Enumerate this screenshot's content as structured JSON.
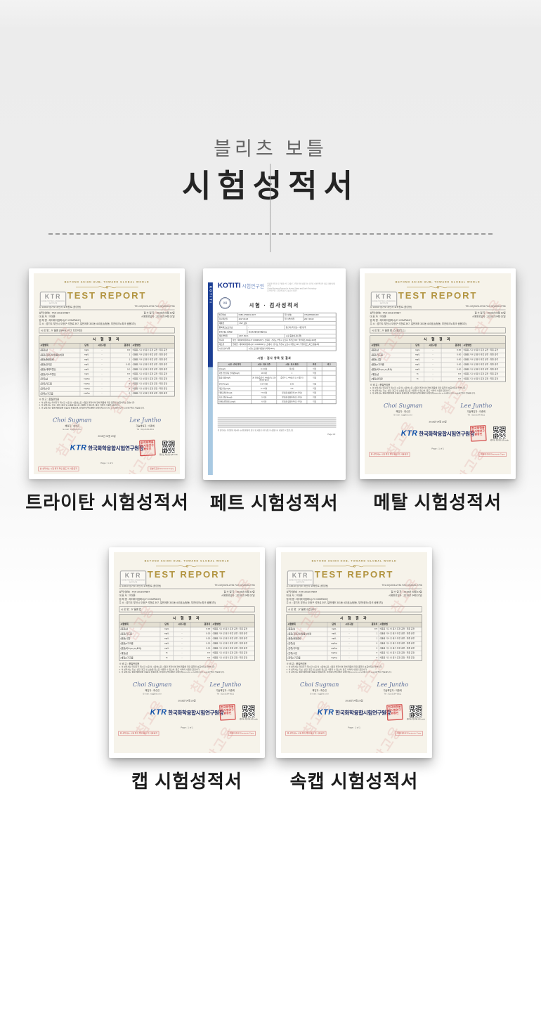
{
  "page": {
    "brand_small": "블리츠 보틀",
    "title": "시험성적서"
  },
  "colors": {
    "page_bg_top": "#ececec",
    "page_bg_bottom": "#ffffff",
    "ktr_gold": "#b29440",
    "ktr_blue": "#1050a8",
    "ktr_navy": "#16245f",
    "stamp_red": "#cc3333",
    "watermark_pink": "#d67d7d",
    "kotiti_blue": "#17338f",
    "kotiti_strip_light": "#a9c9e2",
    "doc_cream": "#f6f3ea"
  },
  "ktr_doc": {
    "tagline": "BEYOND ASIAN HUB, TOWARD GLOBAL WORLD",
    "logo_text": "KTR",
    "logo_sub": "KOREA TESTING & RESEARCH INSTITUTE",
    "report_title": "TEST REPORT",
    "address": "우 13810 경기도 과천시 교육원로 (중앙동)",
    "telfax": "TEL 02)2026-2781   FAX 02)2026-2796",
    "info_rows": [
      {
        "l": "성적서번호 : TAK-2018-04687",
        "r": "접 수 일 자 : 2018년 03월 19일"
      },
      {
        "l": "대  표  자 : 이대훈",
        "r": "시험완료일자 : 2018년 04월 02일"
      },
      {
        "l": "업  체  명 : 제이와이컴퍼니(JY COMPANY)",
        "r": ""
      },
      {
        "l": "주       소 : 경기도 부천시 오정구 석천로 397, 일반제조 301동 403호(삼정동, 부천테크노파크 쌍용3차)",
        "r": ""
      }
    ],
    "result_title": "시 험 결 과",
    "table_headers": [
      "시험항목",
      "단위",
      "시료구분",
      "결과치",
      "시험방법"
    ],
    "method_text": "식품용 기구 및 용기·포장 공전 : 최종 공전",
    "notes_title": "※ 비 고 : 품질관리용",
    "notes": [
      "1. 이 성적서는 의뢰자가 제시한 시료 및 시료명으로 시험한 결과이며 전체 제품에 대한 품질을 보증하지는 않습니다.",
      "2. 이 성적서는 홍보, 선전, 광고 및 소송용 등으로 사용될 수 없으며, 용도 이외의 사용을 금합니다.",
      "3. 이 성적서는 원본(재발행본 포함)만 유효하며, 전자문서/확인본은 홈페이지(www.ktr.or.kr)에서 QR-code로 확인 가능합니다."
    ],
    "signatures": [
      {
        "script": "Choi Sugman",
        "label": "책임자 : 최수진",
        "sub": "E-mail : syj@ktr.or.kr"
      },
      {
        "script": "Lee Juntho",
        "label": "기술책임자 : 이준희",
        "sub": "Tel : 02)-2164-0011"
      }
    ],
    "date": "2018년 04월 20일",
    "org_prefix": "KTR",
    "org_name": "한국화학융합시험연구원장",
    "stamp_text": "한국화학융합시험연구원장인",
    "qr_caption": "위변조 확인용  QR code",
    "page_label": "Page :  1  of  1",
    "red_left": "본 성적서는 시험 결과 확인 용도 외 사용금지",
    "red_right": "원본대조필 Electronic Copy",
    "watermark": "참고용"
  },
  "kotiti_doc": {
    "logo_text": "KOTITI",
    "logo_suffix": "시험연구원",
    "tag_lines": [
      "인류의 안전과 지구환경 보호 기술로 고객과 함께 성장하는 글로벌 시험인증기관 (섬유·생활·환경 분야)",
      "Global Business Partner for Human Safety and Earth Technology",
      "본사/연구원 : 13209  경기도 성남시 분당구"
    ],
    "seal_text": "인증",
    "strip_text": "KOTITI",
    "doc_title": "시험 · 검사성적서",
    "info_rows": [
      [
        [
          "발급번호",
          16
        ],
        [
          "F080-1709031-0027",
          40
        ],
        [
          "접수번호",
          16
        ],
        [
          "4764205936-00X",
          28
        ]
      ],
      [
        [
          "검사완료일",
          16
        ],
        [
          "2017.09.25",
          40
        ],
        [
          "접수(연)월일",
          16
        ],
        [
          "2017.09.02",
          28
        ]
      ],
      [
        [
          "제품명",
          16
        ],
        [
          "PET 보틀",
          84
        ]
      ],
      [
        [
          "품목제조보고번호",
          24
        ],
        [
          "-",
          32
        ],
        [
          "원산지(국가명) : 대한민국",
          44
        ]
      ],
      [
        [
          "판매·제조 업체명",
          24
        ],
        [
          "블리츠(제이와이컴퍼니)",
          76
        ]
      ],
      [
        [
          "제조연월일",
          16
        ],
        [
          "2017.09.01",
          40
        ],
        [
          "시료 중량(포장단위)",
          44
        ]
      ],
      [
        [
          "의뢰자",
          10
        ],
        [
          "상호 : 제이와이컴퍼니(JY COMPANY) / 소재지 : 경기도 부천시 오정구 석천로 397, 일반제조 301동 403호",
          90
        ]
      ],
      [
        [
          "제조원",
          10
        ],
        [
          "업체명 : 제이와이컴퍼니(JY COMPANY) / 소재지 : 경기도 부천시 오정구 석천로 397, 부천테크노파크 쌍용3차",
          90
        ]
      ],
      [
        [
          "시험·검사부위",
          24
        ],
        [
          "시험 | 포장용기(합성수지제 PET)",
          76
        ]
      ]
    ],
    "section_title": "시험 · 검사 항목 및 결과",
    "table_headers": [
      "시험 · 검사 항목",
      "시험 · 검사 기준",
      "시험 · 검사 결과",
      "판정",
      "비고"
    ],
    "rows": [
      [
        "납(mg/l)",
        "0.1 이하",
        "불검출",
        "적합",
        ""
      ],
      [
        "과망간산칼륨 소비량(mg/l)",
        "10 이하",
        "1",
        "적합",
        ""
      ],
      [
        "총용출량(mg/l)",
        "30 이하(증류수, 4%초산), 150 이하(n-헵탄)",
        "증류수 1, 4%초산 1, n-헵탄 5",
        "적합",
        ""
      ],
      [
        "안티몬(mg/l)",
        "0.04 이하",
        "0.00",
        "적합",
        ""
      ],
      [
        "게르마늄(mg/l)",
        "0.1 이하",
        "0.0",
        "적합",
        ""
      ],
      [
        "테레프탈산(mg/l)",
        "7.5 이하",
        "불검출(정량한계 1.5 미만)",
        "적합",
        ""
      ],
      [
        "이소프탈산(mg/l)",
        "5 이하",
        "불검출(정량한계 0.5 미만)",
        "적합",
        ""
      ],
      [
        "아세트알데히드(mg/l)",
        "6 이하",
        "불검출(정량한계 0.5 미만)",
        "적합",
        ""
      ]
    ],
    "footnote": "본 성적서는 의뢰인이 제시한 시료에 한하며, 용도 외 사용과 홍보·광고·소송용으로 사용할 수 없습니다.",
    "page_label": "Page 1/2"
  },
  "certificates": [
    {
      "type": "ktr",
      "caption": "트라이탄 시험성적서",
      "sample": "시 료 명 : JY 물병 (584ml, PCT 트라이탄)",
      "rows": [
        [
          "(용출)납",
          "mg/L",
          "-",
          "0.0"
        ],
        [
          "(용출)과망간산칼륨소비량",
          "mg/L",
          "-",
          "1"
        ],
        [
          "(용출)총용출량",
          "mg/L",
          "-",
          "1"
        ],
        [
          "(용출)안티몬",
          "mg/L",
          "-",
          "0.00"
        ],
        [
          "(용출)테레프탈산",
          "mg/L",
          "-",
          "0.0"
        ],
        [
          "(용출)이소프탈산",
          "mg/L",
          "-",
          "0.0"
        ],
        [
          "(잔류)납",
          "mg/kg",
          "-",
          "0"
        ],
        [
          "(잔류)카드뮴",
          "mg/kg",
          "-",
          "0"
        ],
        [
          "(잔류)수은",
          "mg/kg",
          "-",
          "0"
        ],
        [
          "(잔류)6가크롬",
          "mg/kg",
          "-",
          "0"
        ]
      ]
    },
    {
      "type": "kotiti",
      "caption": "페트 시험성적서"
    },
    {
      "type": "ktr",
      "caption": "메탈 시험성적서",
      "sample": "시 료 명 : JY 물병 병 (스테인리스)",
      "rows": [
        [
          "(용출)납",
          "mg/L",
          "-",
          "0.00"
        ],
        [
          "(용출)카드뮴",
          "mg/L",
          "-",
          "0.00"
        ],
        [
          "(용출)니켈",
          "mg/L",
          "-",
          "0.00"
        ],
        [
          "(용출)6가크롬",
          "mg/L",
          "-",
          "0.00"
        ],
        [
          "(용출)비소(As₂O₃로서)",
          "mg/L",
          "-",
          "0.00"
        ],
        [
          "(재질)납",
          "%",
          "-",
          "0.0"
        ],
        [
          "(재질)안티몬",
          "%",
          "-",
          "0.0"
        ]
      ]
    },
    {
      "type": "ktr",
      "caption": "캡 시험성적서",
      "sample": "시 료 명 : JY 물병 캡",
      "rows": [
        [
          "(용출)납",
          "mg/L",
          "-",
          "0.00"
        ],
        [
          "(용출)카드뮴",
          "mg/L",
          "-",
          "0.00"
        ],
        [
          "(용출)니켈",
          "mg/L",
          "-",
          "0.00"
        ],
        [
          "(용출)6가크롬",
          "mg/L",
          "-",
          "0.00"
        ],
        [
          "(용출)비소(As₂O₃로서)",
          "mg/L",
          "-",
          "0.00"
        ],
        [
          "(재질)납",
          "%",
          "-",
          "0.0"
        ],
        [
          "(재질)6가크롬",
          "%",
          "-",
          "3.2"
        ]
      ]
    },
    {
      "type": "ktr",
      "caption": "속캡 시험성적서",
      "sample": "시 료 명 : JY 물병 속캡 (PP)",
      "rows": [
        [
          "(용출)납",
          "mg/L",
          "-",
          "0.5"
        ],
        [
          "(용출)과망간산칼륨소비량",
          "mg/L",
          "-",
          "1"
        ],
        [
          "(용출)총용출량",
          "mg/L",
          "-",
          "1"
        ],
        [
          "(잔류)납",
          "mg/kg",
          "-",
          "0"
        ],
        [
          "(잔류)카드뮴",
          "mg/kg",
          "-",
          "0"
        ],
        [
          "(잔류)수은",
          "mg/kg",
          "-",
          "0"
        ],
        [
          "(잔류)6가크롬",
          "mg/kg",
          "-",
          "0"
        ]
      ]
    }
  ],
  "rows_layout": {
    "row1": [
      0,
      1,
      2
    ],
    "row2": [
      3,
      4
    ]
  }
}
